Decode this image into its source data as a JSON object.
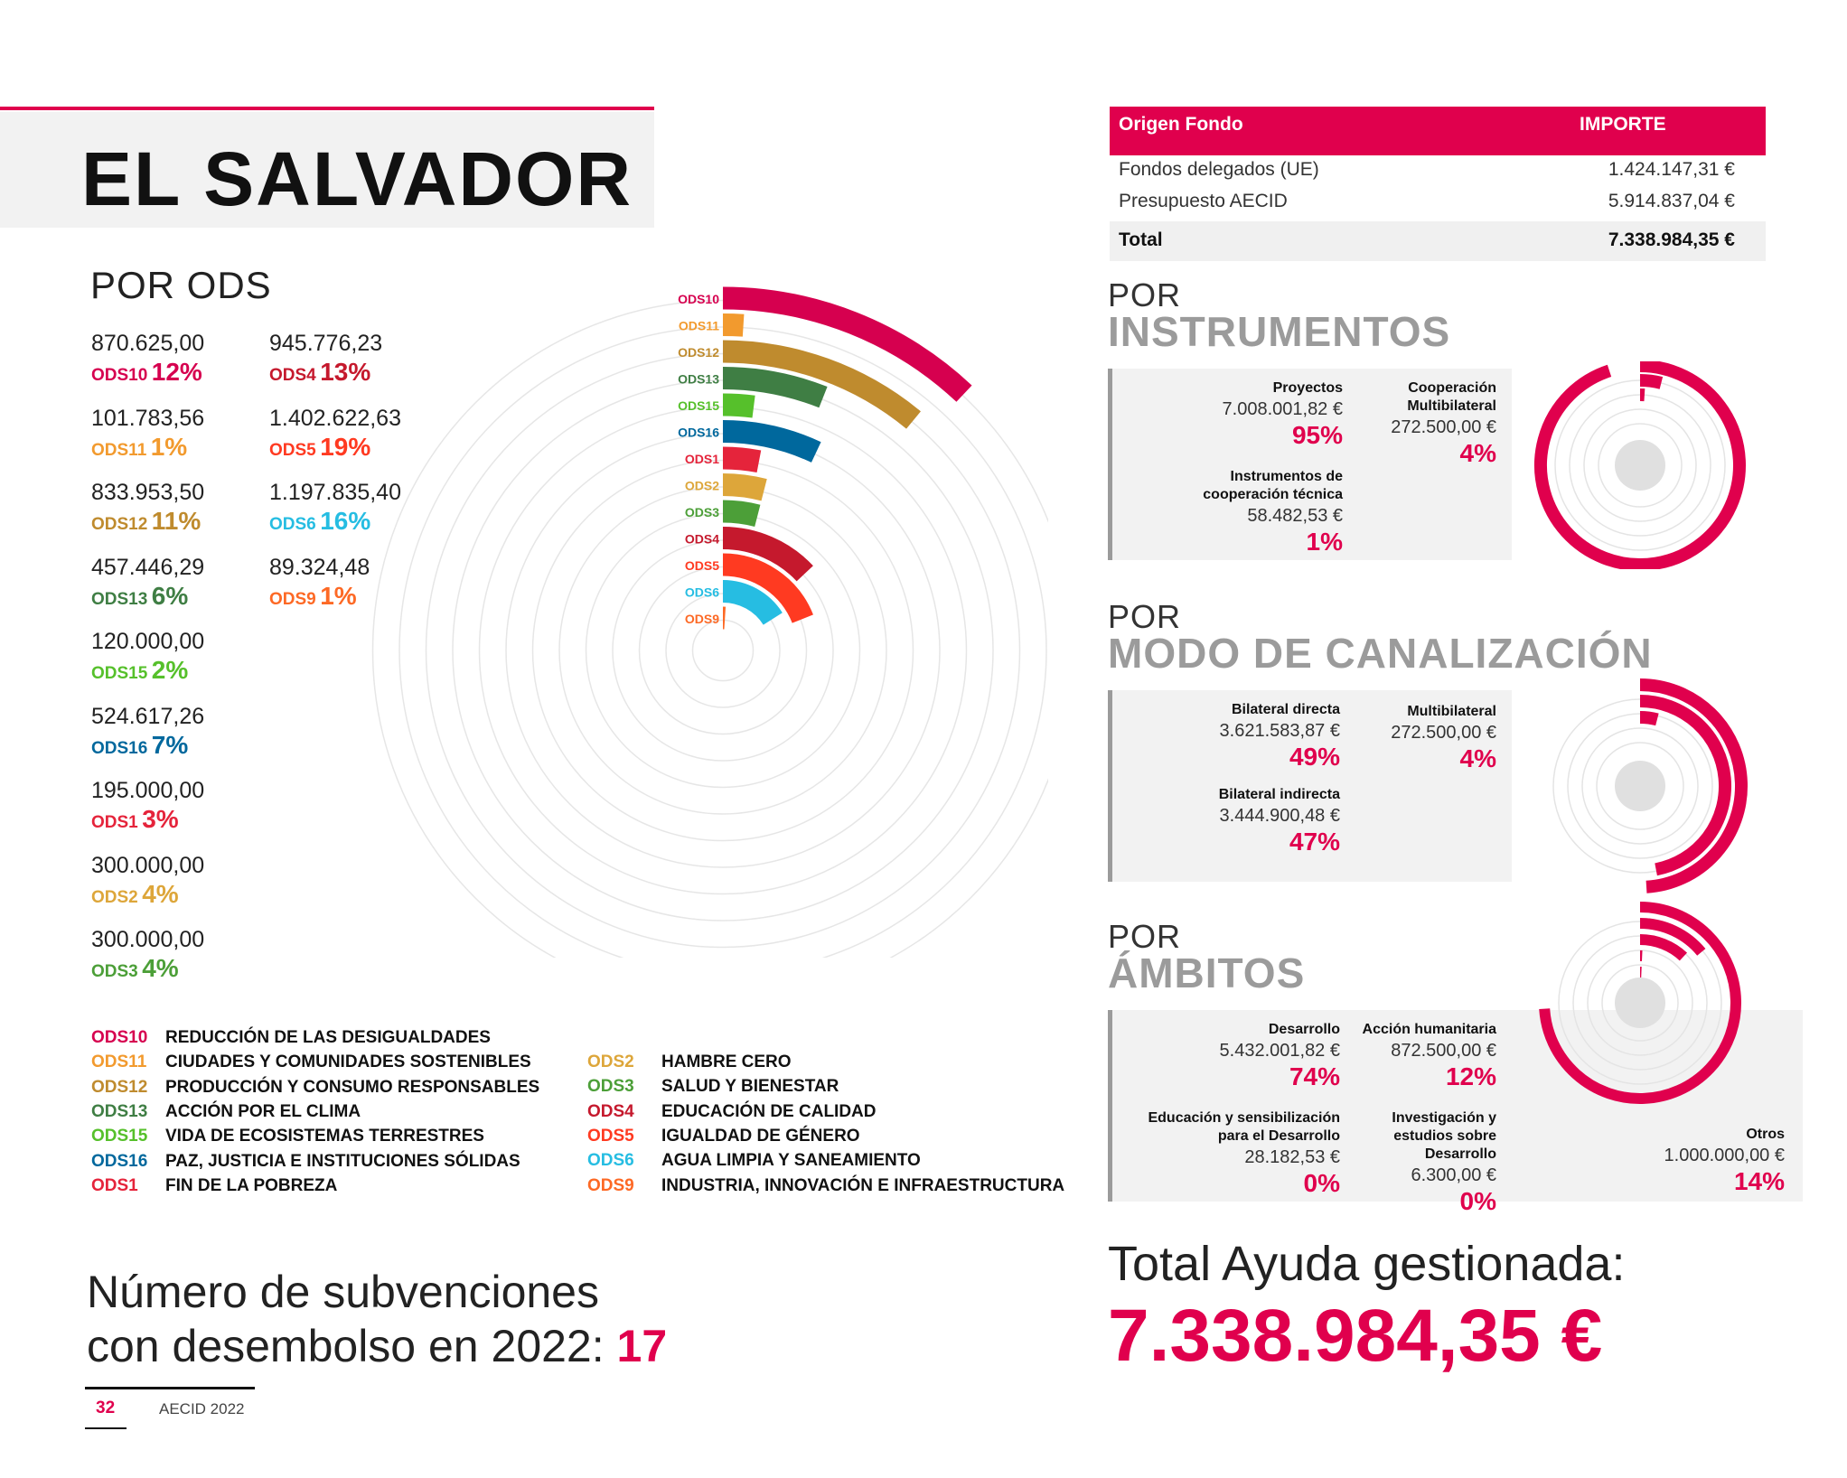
{
  "title": "EL SALVADOR",
  "ods_section": {
    "heading": "POR ODS",
    "left_column": [
      {
        "amount": "870.625,00",
        "code": "ODS10",
        "pct": "12%",
        "color": "#d6004f"
      },
      {
        "amount": "101.783,56",
        "code": "ODS11",
        "pct": "1%",
        "color": "#f29a2e"
      },
      {
        "amount": "833.953,50",
        "code": "ODS12",
        "pct": "11%",
        "color": "#bf8b2e"
      },
      {
        "amount": "457.446,29",
        "code": "ODS13",
        "pct": "6%",
        "color": "#3f7e44"
      },
      {
        "amount": "120.000,00",
        "code": "ODS15",
        "pct": "2%",
        "color": "#56c02b"
      },
      {
        "amount": "524.617,26",
        "code": "ODS16",
        "pct": "7%",
        "color": "#00689d"
      },
      {
        "amount": "195.000,00",
        "code": "ODS1",
        "pct": "3%",
        "color": "#e5243b"
      },
      {
        "amount": "300.000,00",
        "code": "ODS2",
        "pct": "4%",
        "color": "#dda63a"
      },
      {
        "amount": "300.000,00",
        "code": "ODS3",
        "pct": "4%",
        "color": "#4c9f38"
      }
    ],
    "right_column": [
      {
        "amount": "945.776,23",
        "code": "ODS4",
        "pct": "13%",
        "color": "#c5192d"
      },
      {
        "amount": "1.402.622,63",
        "code": "ODS5",
        "pct": "19%",
        "color": "#ff3a21"
      },
      {
        "amount": "1.197.835,40",
        "code": "ODS6",
        "pct": "16%",
        "color": "#26bde2"
      },
      {
        "amount": "89.324,48",
        "code": "ODS9",
        "pct": "1%",
        "color": "#fd6925"
      }
    ]
  },
  "chart_data": {
    "type": "radial-bar",
    "categories": [
      "ODS10",
      "ODS11",
      "ODS12",
      "ODS13",
      "ODS15",
      "ODS16",
      "ODS1",
      "ODS2",
      "ODS3",
      "ODS4",
      "ODS5",
      "ODS6",
      "ODS9"
    ],
    "values": [
      12,
      1,
      11,
      6,
      2,
      7,
      3,
      4,
      4,
      13,
      19,
      16,
      1
    ],
    "colors": [
      "#d6004f",
      "#f29a2e",
      "#bf8b2e",
      "#3f7e44",
      "#56c02b",
      "#00689d",
      "#e5243b",
      "#dda63a",
      "#4c9f38",
      "#c5192d",
      "#ff3a21",
      "#26bde2",
      "#fd6925"
    ]
  },
  "legend": {
    "left": [
      {
        "code": "ODS10",
        "name": "REDUCCIÓN DE LAS DESIGUALDADES",
        "color": "#d6004f"
      },
      {
        "code": "ODS11",
        "name": "CIUDADES Y COMUNIDADES SOSTENIBLES",
        "color": "#f29a2e"
      },
      {
        "code": "ODS12",
        "name": "PRODUCCIÓN Y CONSUMO RESPONSABLES",
        "color": "#bf8b2e"
      },
      {
        "code": "ODS13",
        "name": "ACCIÓN POR EL CLIMA",
        "color": "#3f7e44"
      },
      {
        "code": "ODS15",
        "name": "VIDA DE ECOSISTEMAS TERRESTRES",
        "color": "#56c02b"
      },
      {
        "code": "ODS16",
        "name": "PAZ, JUSTICIA E INSTITUCIONES SÓLIDAS",
        "color": "#00689d"
      },
      {
        "code": "ODS1",
        "name": "FIN DE LA POBREZA",
        "color": "#e5243b"
      }
    ],
    "right": [
      {
        "code": "ODS2",
        "name": "HAMBRE CERO",
        "color": "#dda63a"
      },
      {
        "code": "ODS3",
        "name": "SALUD Y BIENESTAR",
        "color": "#4c9f38"
      },
      {
        "code": "ODS4",
        "name": "EDUCACIÓN DE CALIDAD",
        "color": "#c5192d"
      },
      {
        "code": "ODS5",
        "name": "IGUALDAD DE GÉNERO",
        "color": "#ff3a21"
      },
      {
        "code": "ODS6",
        "name": "AGUA LIMPIA Y SANEAMIENTO",
        "color": "#26bde2"
      },
      {
        "code": "ODS9",
        "name": "INDUSTRIA, INNOVACIÓN E INFRAESTRUCTURA",
        "color": "#fd6925"
      }
    ]
  },
  "subvenciones": {
    "line1": "Número de subvenciones",
    "line2": "con desembolso en 2022:",
    "count": "17"
  },
  "footer": {
    "page": "32",
    "text": "AECID 2022"
  },
  "fund_table": {
    "col1": "Origen Fondo",
    "col2": "IMPORTE",
    "rows": [
      {
        "label": "Fondos delegados (UE)",
        "value": "1.424.147,31 €"
      },
      {
        "label": "Presupuesto AECID",
        "value": "5.914.837,04 €"
      }
    ],
    "total_label": "Total",
    "total_value": "7.338.984,35 €"
  },
  "instrumentos": {
    "small": "POR",
    "big": "INSTRUMENTOS",
    "items": [
      {
        "name": "Proyectos",
        "amount": "7.008.001,82 €",
        "pct": "95%",
        "value": 95
      },
      {
        "name": "Cooperación Multibilateral",
        "amount": "272.500,00 €",
        "pct": "4%",
        "value": 4
      },
      {
        "name": "Instrumentos de cooperación técnica",
        "amount": "58.482,53 €",
        "pct": "1%",
        "value": 1
      }
    ]
  },
  "canalizacion": {
    "small": "POR",
    "big": "MODO DE CANALIZACIÓN",
    "items": [
      {
        "name": "Bilateral directa",
        "amount": "3.621.583,87 €",
        "pct": "49%",
        "value": 49
      },
      {
        "name": "Multibilateral",
        "amount": "272.500,00 €",
        "pct": "4%",
        "value": 4
      },
      {
        "name": "Bilateral indirecta",
        "amount": "3.444.900,48 €",
        "pct": "47%",
        "value": 47
      }
    ]
  },
  "ambitos": {
    "small": "POR",
    "big": "ÁMBITOS",
    "items": [
      {
        "name": "Desarrollo",
        "amount": "5.432.001,82 €",
        "pct": "74%",
        "value": 74
      },
      {
        "name": "Acción humanitaria",
        "amount": "872.500,00 €",
        "pct": "12%",
        "value": 12
      },
      {
        "name": "Educación y sensibilización para el Desarrollo",
        "amount": "28.182,53 €",
        "pct": "0%",
        "value": 0.4
      },
      {
        "name": "Investigación y estudios sobre Desarrollo",
        "amount": "6.300,00 €",
        "pct": "0%",
        "value": 0.1
      },
      {
        "name": "Otros",
        "amount": "1.000.000,00 €",
        "pct": "14%",
        "value": 14
      }
    ]
  },
  "total_ayuda": {
    "label": "Total Ayuda gestionada:",
    "value": "7.338.984,35 €"
  },
  "accent_color": "#e0004d"
}
